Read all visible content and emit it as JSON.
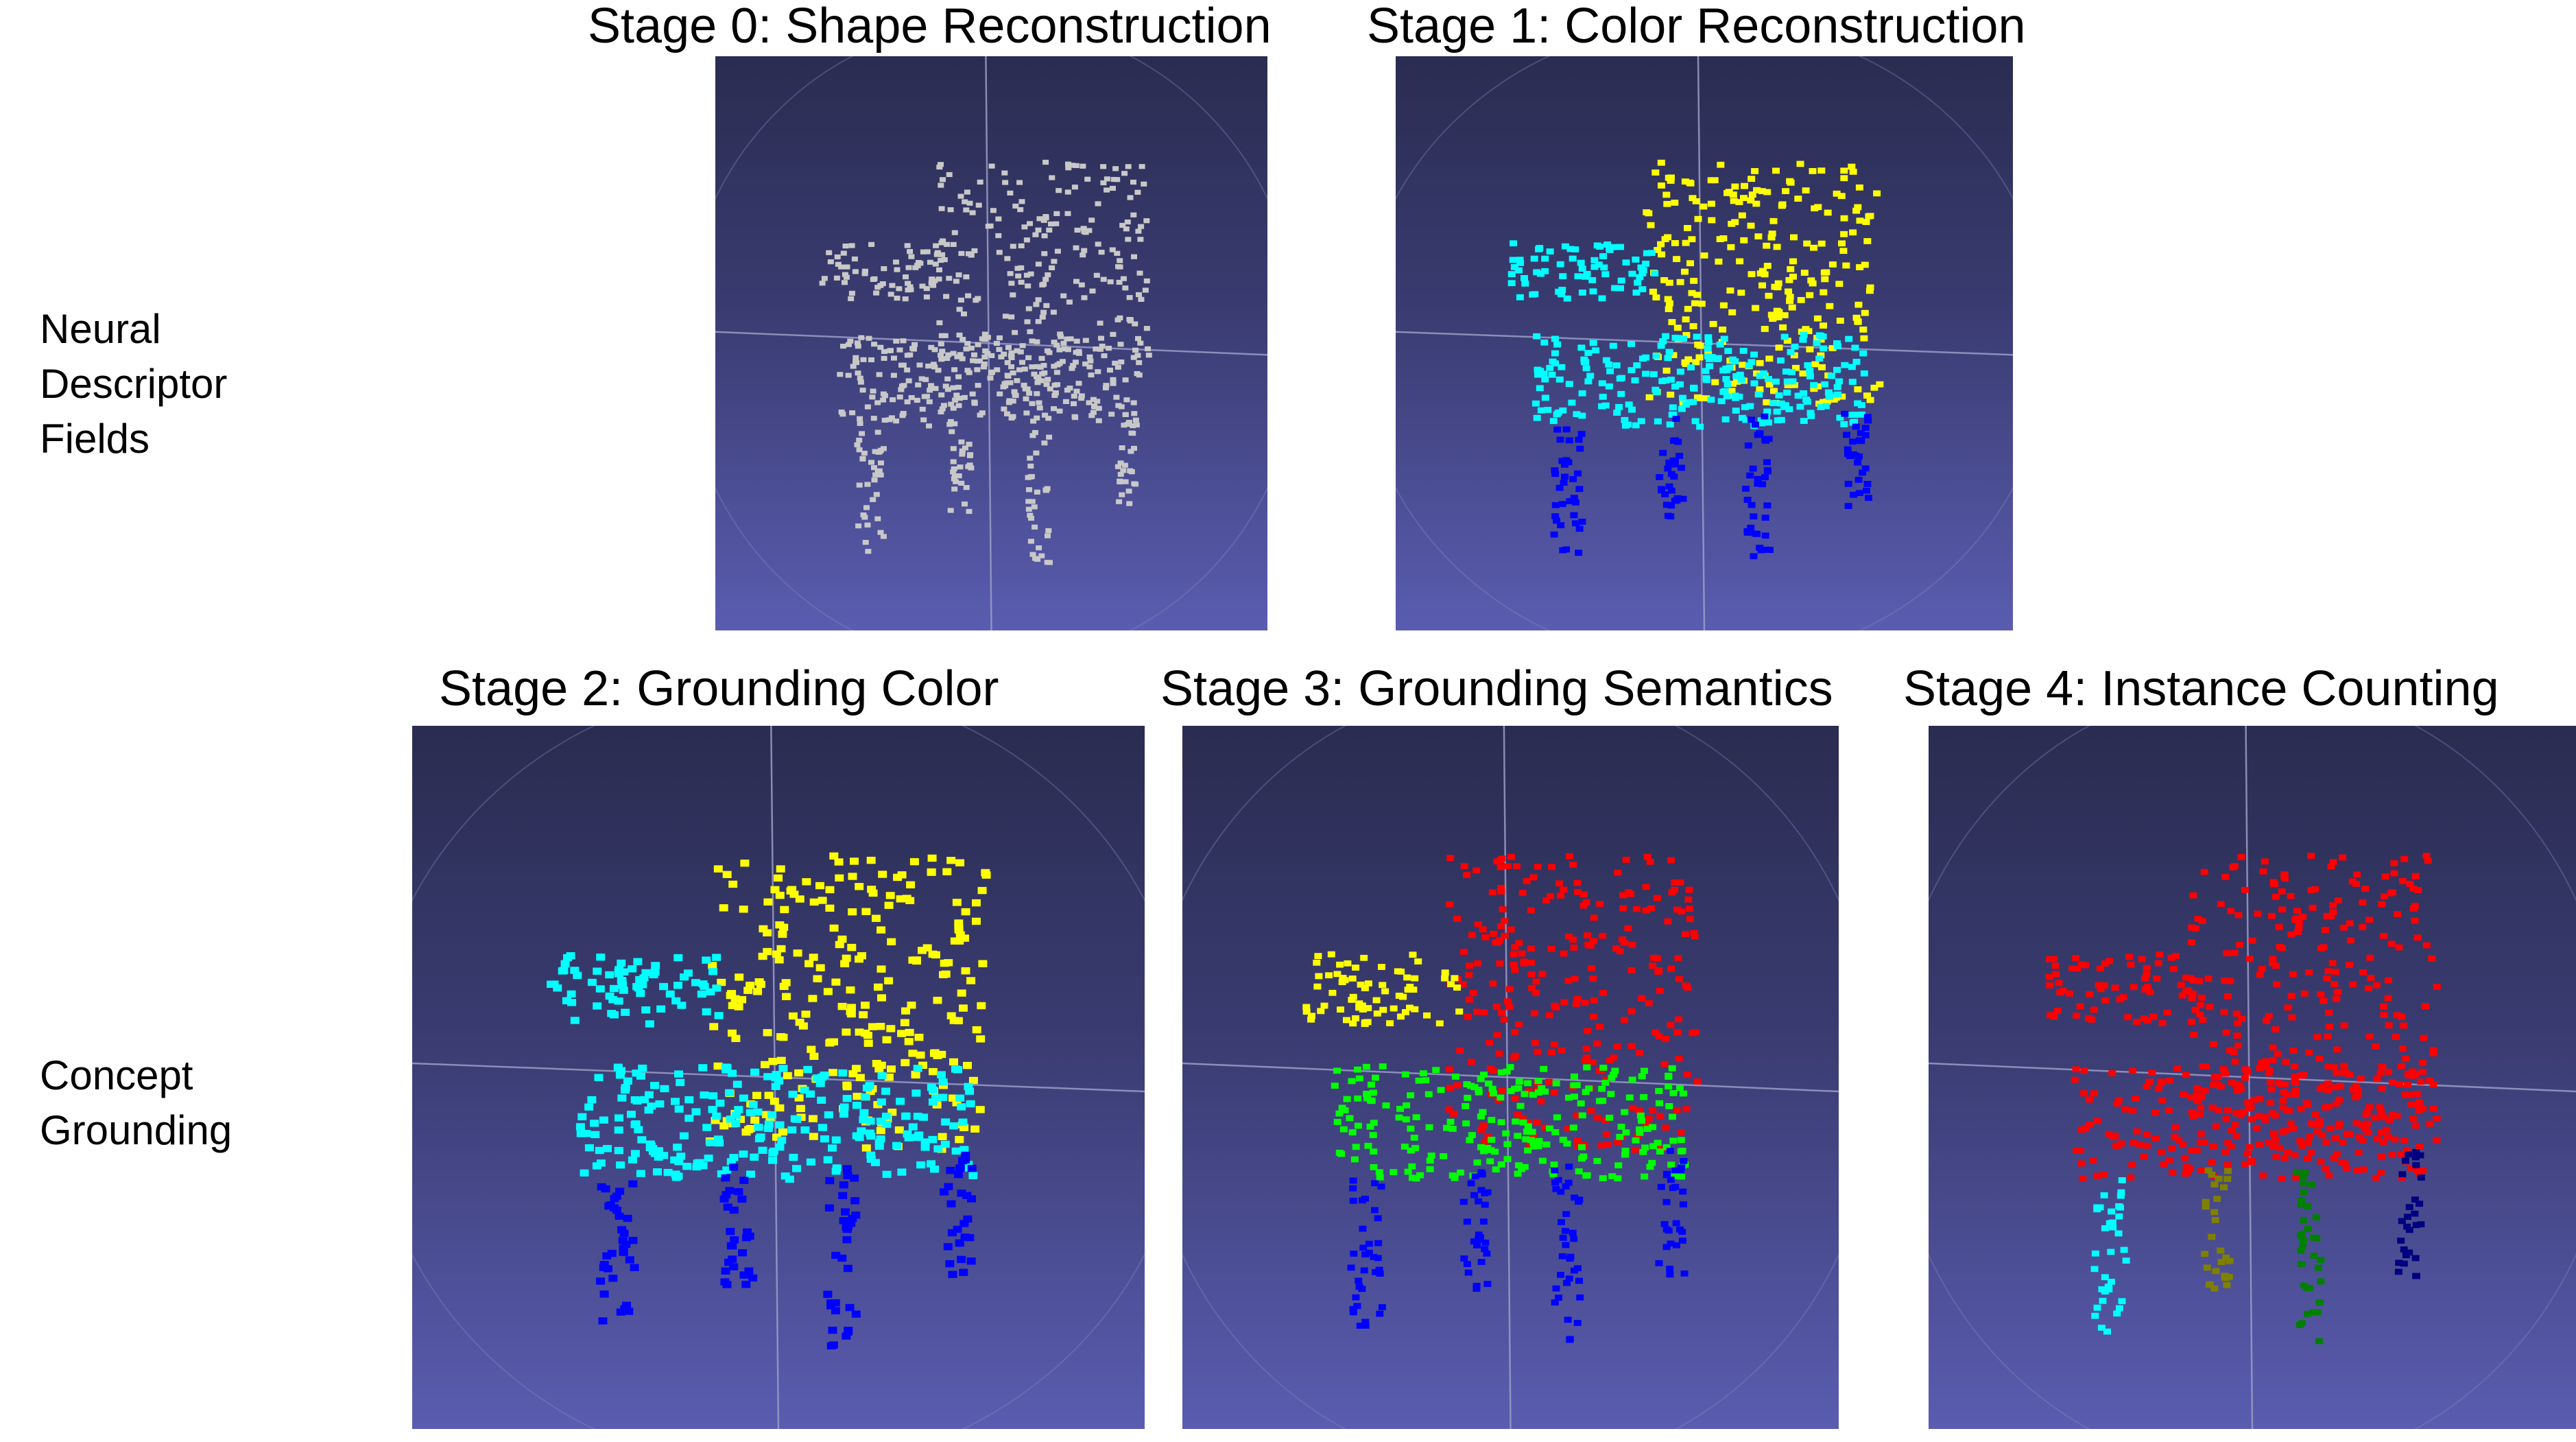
{
  "row_labels": {
    "row1": [
      "Neural",
      "Descriptor",
      "Fields"
    ],
    "row2": [
      "Concept",
      "Grounding"
    ]
  },
  "panels": [
    {
      "id": "stage0",
      "title": "Stage 0: Shape Reconstruction",
      "parts": {
        "back": "#c8c8c8",
        "arms": "#c8c8c8",
        "seat": "#c8c8c8",
        "leg1": "#c8c8c8",
        "leg2": "#c8c8c8",
        "leg3": "#c8c8c8",
        "leg4": "#c8c8c8"
      }
    },
    {
      "id": "stage1",
      "title": "Stage 1: Color Reconstruction",
      "parts": {
        "back": "#ffff00",
        "arms": "#00ffff",
        "seat": "#00ffff",
        "leg1": "#0000ff",
        "leg2": "#0000ff",
        "leg3": "#0000ff",
        "leg4": "#0000ff"
      }
    },
    {
      "id": "stage2",
      "title": "Stage 2: Grounding Color",
      "parts": {
        "back": "#ffff00",
        "arms": "#00ffff",
        "seat": "#00ffff",
        "leg1": "#0000ff",
        "leg2": "#0000ff",
        "leg3": "#0000ff",
        "leg4": "#0000ff"
      }
    },
    {
      "id": "stage3",
      "title": "Stage 3: Grounding Semantics",
      "parts": {
        "back": "#ff0000",
        "arms": "#ffff00",
        "seat": "#00ff00",
        "leg1": "#0000ff",
        "leg2": "#0000ff",
        "leg3": "#0000ff",
        "leg4": "#0000ff"
      }
    },
    {
      "id": "stage4",
      "title": "Stage 4: Instance Counting",
      "parts": {
        "back": "#ff0000",
        "arms": "#ff0000",
        "seat": "#ff0000",
        "leg1": "#00ffff",
        "leg2": "#808000",
        "leg3": "#008000",
        "leg4": "#000080"
      }
    }
  ]
}
